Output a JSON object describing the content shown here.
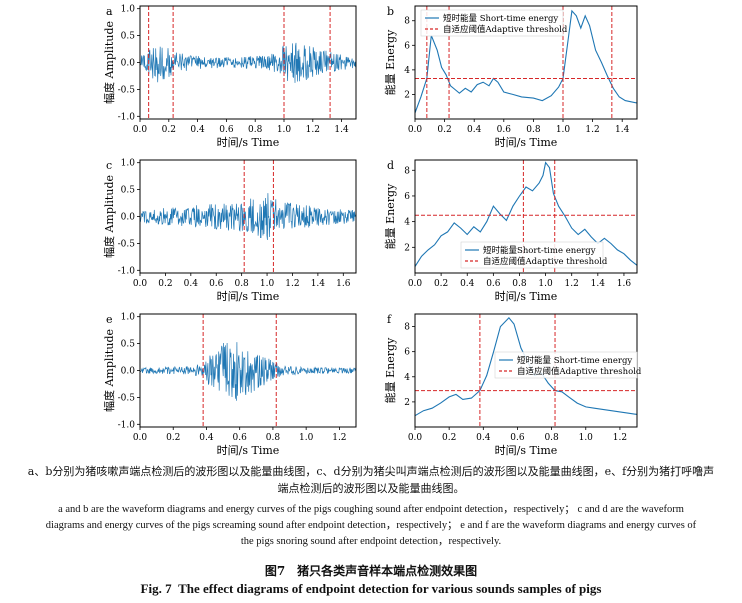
{
  "figure": {
    "number_zh": "图7",
    "title_zh": "猪只各类声音样本端点检测效果图",
    "number_en": "Fig. 7",
    "title_en": "The effect diagrams of endpoint detection for various sounds samples of pigs"
  },
  "caption_zh_lines": [
    "a、b分别为猪咳嗽声端点检测后的波形图以及能量曲线图，c、d分别为猪尖叫声端点检测后的波形图以及能量曲线图，e、f分别为猪打呼噜声",
    "端点检测后的波形图以及能量曲线图。"
  ],
  "caption_en_lines": [
    "a and b are the waveform diagrams and energy curves of the pigs coughing sound after endpoint detection，respectively； c and d are the waveform",
    "diagrams and energy curves of the pigs screaming sound after endpoint detection，respectively； e and f are the waveform diagrams and energy curves of",
    "the pigs snoring sound after endpoint detection，respectively."
  ],
  "colors": {
    "signal": "#1f77b4",
    "threshold": "#d62728",
    "endpoint": "#d62728",
    "axis": "#000000"
  },
  "chart_data": [
    {
      "panel": "a",
      "type": "line",
      "kind": "waveform",
      "sound": "coughing",
      "xlabel": "时间/s  Time",
      "ylabel": "幅度 Amplitude",
      "xlim": [
        0,
        1.5
      ],
      "ylim": [
        -1.05,
        1.05
      ],
      "xticks": [
        "0.0",
        "0.2",
        "0.4",
        "0.6",
        "0.8",
        "1.0",
        "1.2",
        "1.4"
      ],
      "yticks": [
        "-1.0",
        "-0.5",
        "0.0",
        "0.5",
        "1.0"
      ],
      "endpoints": [
        0.06,
        0.23,
        1.0,
        1.32
      ],
      "envelope": [
        [
          0,
          0.1
        ],
        [
          0.06,
          0.28
        ],
        [
          0.1,
          0.38
        ],
        [
          0.16,
          0.4
        ],
        [
          0.23,
          0.2
        ],
        [
          0.4,
          0.12
        ],
        [
          0.6,
          0.1
        ],
        [
          0.8,
          0.12
        ],
        [
          0.95,
          0.2
        ],
        [
          1.0,
          0.33
        ],
        [
          1.05,
          0.4
        ],
        [
          1.2,
          0.3
        ],
        [
          1.32,
          0.2
        ],
        [
          1.5,
          0.1
        ]
      ]
    },
    {
      "panel": "b",
      "type": "line",
      "kind": "energy",
      "sound": "coughing",
      "xlabel": "时间/s  Time",
      "ylabel": "能量 Energy",
      "xlim": [
        0,
        1.5
      ],
      "ylim": [
        0,
        9.2
      ],
      "xticks": [
        "0.0",
        "0.2",
        "0.4",
        "0.6",
        "0.8",
        "1.0",
        "1.2",
        "1.4"
      ],
      "yticks": [
        "2",
        "4",
        "6",
        "8"
      ],
      "threshold": 3.3,
      "endpoints": [
        0.08,
        0.23,
        1.0,
        1.33
      ],
      "legend": {
        "position": "top-left",
        "entries": [
          "短时能量 Short-time energy",
          "自适应阈值Adaptive threshold"
        ]
      },
      "series": [
        [
          0,
          0.5
        ],
        [
          0.04,
          1.8
        ],
        [
          0.08,
          3.3
        ],
        [
          0.11,
          6.8
        ],
        [
          0.15,
          5.6
        ],
        [
          0.18,
          4.2
        ],
        [
          0.21,
          3.6
        ],
        [
          0.24,
          2.7
        ],
        [
          0.27,
          2.4
        ],
        [
          0.3,
          2.1
        ],
        [
          0.34,
          2.5
        ],
        [
          0.38,
          2.2
        ],
        [
          0.42,
          2.8
        ],
        [
          0.46,
          3.0
        ],
        [
          0.5,
          2.7
        ],
        [
          0.53,
          3.3
        ],
        [
          0.56,
          3.0
        ],
        [
          0.6,
          2.2
        ],
        [
          0.66,
          2.0
        ],
        [
          0.72,
          1.8
        ],
        [
          0.8,
          1.7
        ],
        [
          0.86,
          1.5
        ],
        [
          0.92,
          1.9
        ],
        [
          0.97,
          2.6
        ],
        [
          1.0,
          3.3
        ],
        [
          1.03,
          6.0
        ],
        [
          1.06,
          8.8
        ],
        [
          1.09,
          8.4
        ],
        [
          1.12,
          7.4
        ],
        [
          1.15,
          8.4
        ],
        [
          1.18,
          7.6
        ],
        [
          1.22,
          5.6
        ],
        [
          1.26,
          4.6
        ],
        [
          1.3,
          3.5
        ],
        [
          1.34,
          2.5
        ],
        [
          1.38,
          1.8
        ],
        [
          1.42,
          1.5
        ],
        [
          1.46,
          1.4
        ],
        [
          1.5,
          1.3
        ]
      ]
    },
    {
      "panel": "c",
      "type": "line",
      "kind": "waveform",
      "sound": "screaming",
      "xlabel": "时间/s  Time",
      "ylabel": "幅度 Amplitude",
      "xlim": [
        0,
        1.7
      ],
      "ylim": [
        -1.05,
        1.05
      ],
      "xticks": [
        "0.0",
        "0.2",
        "0.4",
        "0.6",
        "0.8",
        "1.0",
        "1.2",
        "1.4",
        "1.6"
      ],
      "yticks": [
        "-1.0",
        "-0.5",
        "0.0",
        "0.5",
        "1.0"
      ],
      "endpoints": [
        0.82,
        1.05
      ],
      "envelope": [
        [
          0,
          0.12
        ],
        [
          0.2,
          0.16
        ],
        [
          0.4,
          0.2
        ],
        [
          0.6,
          0.24
        ],
        [
          0.8,
          0.3
        ],
        [
          0.9,
          0.38
        ],
        [
          1.0,
          0.45
        ],
        [
          1.05,
          0.35
        ],
        [
          1.2,
          0.25
        ],
        [
          1.4,
          0.18
        ],
        [
          1.6,
          0.14
        ],
        [
          1.7,
          0.12
        ]
      ]
    },
    {
      "panel": "d",
      "type": "line",
      "kind": "energy",
      "sound": "screaming",
      "xlabel": "时间/s  Time",
      "ylabel": "能量 Energy",
      "xlim": [
        0,
        1.7
      ],
      "ylim": [
        0,
        8.8
      ],
      "xticks": [
        "0.0",
        "0.2",
        "0.4",
        "0.6",
        "0.8",
        "1.0",
        "1.2",
        "1.4",
        "1.6"
      ],
      "yticks": [
        "2",
        "4",
        "6",
        "8"
      ],
      "threshold": 4.5,
      "endpoints": [
        0.83,
        1.07
      ],
      "legend": {
        "position": "lower-right",
        "entries": [
          "短时能量Short-time energy",
          "自适应阈值Adaptive threshold"
        ]
      },
      "series": [
        [
          0,
          0.5
        ],
        [
          0.05,
          1.3
        ],
        [
          0.1,
          1.8
        ],
        [
          0.15,
          2.2
        ],
        [
          0.2,
          2.9
        ],
        [
          0.25,
          3.2
        ],
        [
          0.3,
          3.9
        ],
        [
          0.35,
          3.5
        ],
        [
          0.4,
          3.0
        ],
        [
          0.45,
          3.6
        ],
        [
          0.5,
          3.2
        ],
        [
          0.55,
          4.0
        ],
        [
          0.6,
          5.2
        ],
        [
          0.65,
          4.6
        ],
        [
          0.7,
          4.1
        ],
        [
          0.75,
          5.2
        ],
        [
          0.8,
          6.0
        ],
        [
          0.85,
          6.7
        ],
        [
          0.9,
          6.4
        ],
        [
          0.95,
          7.0
        ],
        [
          0.98,
          7.6
        ],
        [
          1.0,
          8.6
        ],
        [
          1.03,
          8.2
        ],
        [
          1.06,
          6.2
        ],
        [
          1.1,
          5.2
        ],
        [
          1.15,
          4.4
        ],
        [
          1.2,
          3.5
        ],
        [
          1.25,
          3.0
        ],
        [
          1.3,
          3.4
        ],
        [
          1.35,
          2.8
        ],
        [
          1.4,
          2.3
        ],
        [
          1.45,
          2.7
        ],
        [
          1.5,
          2.3
        ],
        [
          1.55,
          1.8
        ],
        [
          1.6,
          1.5
        ],
        [
          1.65,
          1.0
        ],
        [
          1.7,
          0.6
        ]
      ]
    },
    {
      "panel": "e",
      "type": "line",
      "kind": "waveform",
      "sound": "snoring",
      "xlabel": "时间/s  Time",
      "ylabel": "幅度 Amplitude",
      "xlim": [
        0,
        1.3
      ],
      "ylim": [
        -1.05,
        1.05
      ],
      "xticks": [
        "0.0",
        "0.2",
        "0.4",
        "0.6",
        "0.8",
        "1.0",
        "1.2"
      ],
      "yticks": [
        "-1.0",
        "-0.5",
        "0.0",
        "0.5",
        "1.0"
      ],
      "endpoints": [
        0.38,
        0.82
      ],
      "envelope": [
        [
          0,
          0.05
        ],
        [
          0.3,
          0.08
        ],
        [
          0.38,
          0.15
        ],
        [
          0.45,
          0.4
        ],
        [
          0.52,
          0.55
        ],
        [
          0.58,
          0.6
        ],
        [
          0.64,
          0.5
        ],
        [
          0.72,
          0.35
        ],
        [
          0.8,
          0.18
        ],
        [
          0.85,
          0.1
        ],
        [
          1.0,
          0.06
        ],
        [
          1.3,
          0.05
        ]
      ]
    },
    {
      "panel": "f",
      "type": "line",
      "kind": "energy",
      "sound": "snoring",
      "xlabel": "时间/s  Time",
      "ylabel": "能量 Energy",
      "xlim": [
        0,
        1.3
      ],
      "ylim": [
        0,
        9.0
      ],
      "xticks": [
        "0.0",
        "0.2",
        "0.4",
        "0.6",
        "0.8",
        "1.0",
        "1.2"
      ],
      "yticks": [
        "2",
        "4",
        "6",
        "8"
      ],
      "threshold": 2.9,
      "endpoints": [
        0.38,
        0.82
      ],
      "legend": {
        "position": "top-right",
        "entries": [
          "短时能量 Short-time energy",
          "自适应阈值Adaptive threshold"
        ]
      },
      "series": [
        [
          0,
          0.9
        ],
        [
          0.05,
          1.3
        ],
        [
          0.1,
          1.5
        ],
        [
          0.15,
          1.9
        ],
        [
          0.2,
          2.4
        ],
        [
          0.24,
          2.6
        ],
        [
          0.28,
          2.2
        ],
        [
          0.33,
          2.3
        ],
        [
          0.38,
          2.9
        ],
        [
          0.42,
          4.1
        ],
        [
          0.46,
          6.0
        ],
        [
          0.5,
          8.0
        ],
        [
          0.55,
          8.7
        ],
        [
          0.58,
          8.2
        ],
        [
          0.62,
          6.3
        ],
        [
          0.66,
          5.2
        ],
        [
          0.7,
          4.1
        ],
        [
          0.74,
          4.3
        ],
        [
          0.78,
          3.5
        ],
        [
          0.82,
          2.9
        ],
        [
          0.86,
          2.8
        ],
        [
          0.9,
          2.4
        ],
        [
          0.95,
          1.9
        ],
        [
          1.0,
          1.6
        ],
        [
          1.05,
          1.5
        ],
        [
          1.1,
          1.4
        ],
        [
          1.15,
          1.3
        ],
        [
          1.2,
          1.2
        ],
        [
          1.25,
          1.1
        ],
        [
          1.3,
          1.0
        ]
      ]
    }
  ]
}
